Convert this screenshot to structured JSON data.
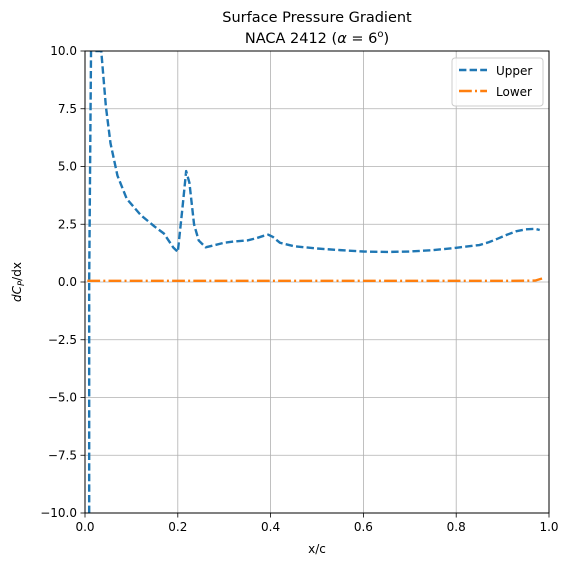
{
  "chart_data": {
    "type": "line",
    "title": "Surface Pressure Gradient",
    "subtitle_prefix": "NACA 2412 (",
    "subtitle_alpha": "α",
    "subtitle_eq": " = 6",
    "subtitle_sup": "o",
    "subtitle_suffix": ")",
    "xlabel": "x/c",
    "ylabel_italic": "dC",
    "ylabel_sub": "P",
    "ylabel_rest": "/dx",
    "xlim": [
      0.0,
      1.0
    ],
    "ylim": [
      -10.0,
      10.0
    ],
    "x_ticks": [
      "0.0",
      "0.2",
      "0.4",
      "0.6",
      "0.8",
      "1.0"
    ],
    "y_ticks": [
      "−10.0",
      "−7.5",
      "−5.0",
      "−2.5",
      "0.0",
      "2.5",
      "5.0",
      "7.5",
      "10.0"
    ],
    "grid": true,
    "legend_position": "top-right",
    "series": [
      {
        "name": "Upper",
        "color": "#1f77b4",
        "style": "dashed",
        "x": [
          0.009,
          0.009,
          0.011,
          0.013,
          0.02,
          0.03,
          0.035,
          0.045,
          0.055,
          0.07,
          0.09,
          0.12,
          0.15,
          0.17,
          0.19,
          0.2,
          0.21,
          0.218,
          0.225,
          0.235,
          0.245,
          0.26,
          0.28,
          0.3,
          0.32,
          0.35,
          0.37,
          0.385,
          0.395,
          0.405,
          0.42,
          0.45,
          0.5,
          0.55,
          0.6,
          0.65,
          0.7,
          0.75,
          0.8,
          0.85,
          0.87,
          0.89,
          0.91,
          0.93,
          0.95,
          0.97,
          0.98
        ],
        "y": [
          -10.0,
          0.0,
          5.0,
          10.0,
          10.0,
          10.0,
          10.0,
          7.6,
          6.0,
          4.6,
          3.6,
          2.9,
          2.4,
          2.1,
          1.5,
          1.3,
          3.2,
          4.8,
          4.3,
          2.5,
          1.8,
          1.5,
          1.6,
          1.7,
          1.75,
          1.8,
          1.9,
          2.0,
          2.05,
          1.95,
          1.7,
          1.55,
          1.45,
          1.38,
          1.32,
          1.3,
          1.32,
          1.38,
          1.48,
          1.6,
          1.72,
          1.88,
          2.05,
          2.2,
          2.28,
          2.3,
          2.25
        ]
      },
      {
        "name": "Lower",
        "color": "#ff7f0e",
        "style": "dashdot",
        "x": [
          0.005,
          0.1,
          0.2,
          0.3,
          0.4,
          0.5,
          0.6,
          0.7,
          0.8,
          0.9,
          0.97,
          0.985
        ],
        "y": [
          0.05,
          0.05,
          0.05,
          0.05,
          0.05,
          0.05,
          0.05,
          0.05,
          0.05,
          0.05,
          0.06,
          0.15
        ]
      }
    ]
  }
}
